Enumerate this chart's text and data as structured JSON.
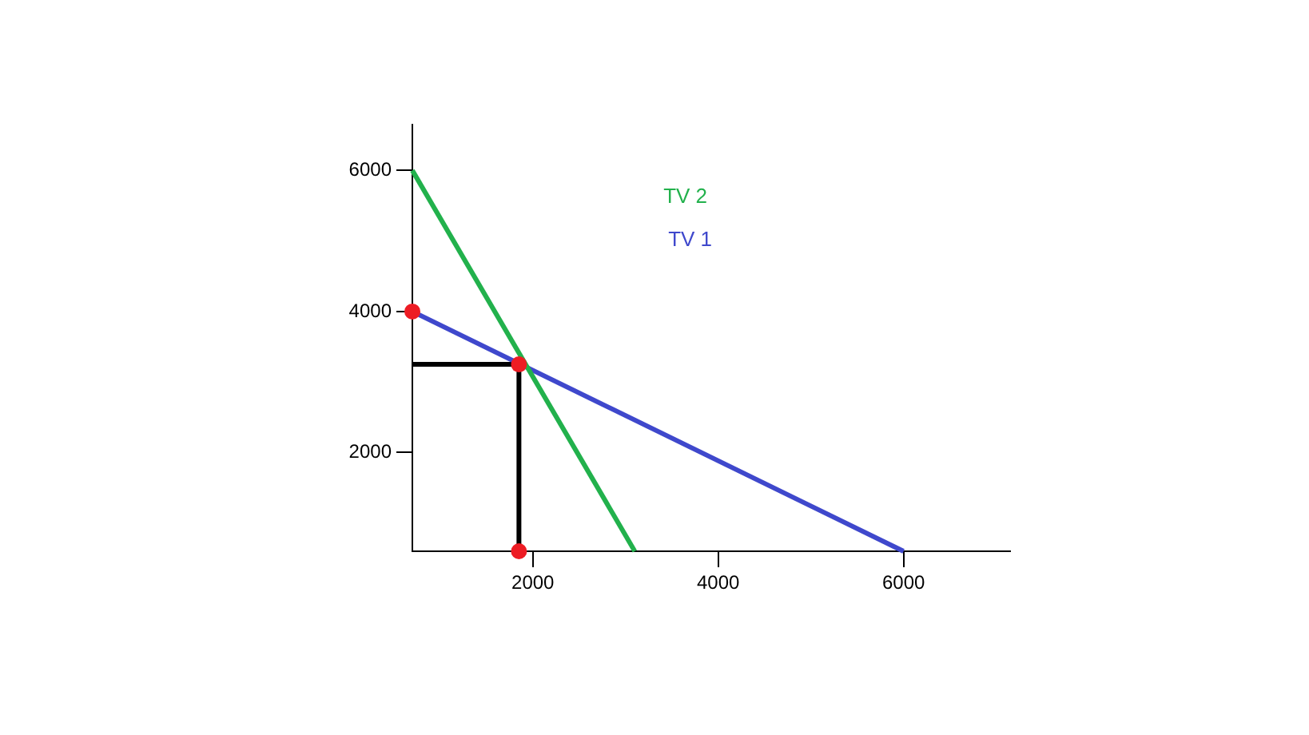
{
  "chart_data": {
    "type": "line",
    "xlim": [
      700,
      7150
    ],
    "ylim": [
      600,
      6650
    ],
    "xticks": [
      2000,
      4000,
      6000
    ],
    "yticks": [
      2000,
      4000,
      6000
    ],
    "grid": false,
    "legend": "top",
    "series": [
      {
        "name": "TV 2",
        "color": "#22b14c",
        "x": [
          700,
          3100
        ],
        "values": [
          6000,
          600
        ]
      },
      {
        "name": "TV 1",
        "color": "#3f48cc",
        "x": [
          700,
          6000
        ],
        "values": [
          4000,
          600
        ]
      },
      {
        "type": "line",
        "color": "#000000",
        "x": [
          700,
          1850,
          1850
        ],
        "values": [
          3250,
          3250,
          600
        ]
      },
      {
        "type": "scatter",
        "marker": "circle",
        "color": "#ed1c24",
        "x": [
          700,
          1850,
          1850
        ],
        "values": [
          4000,
          3250,
          600
        ]
      }
    ]
  }
}
